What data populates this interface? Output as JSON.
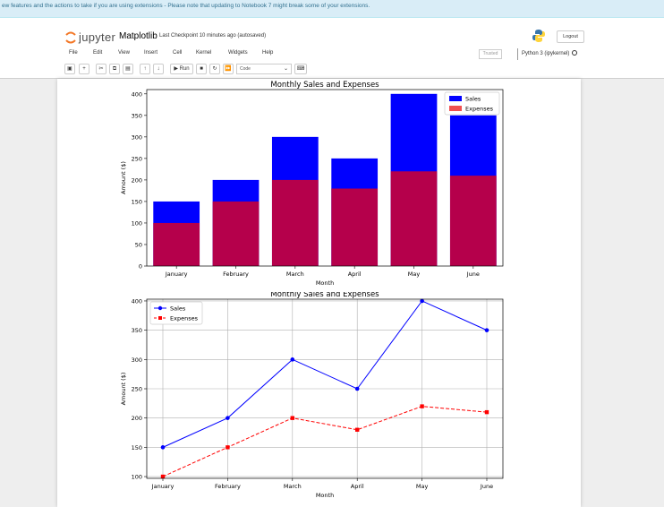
{
  "banner": {
    "text": "ew features and the actions to take if you are using extensions - Please note that updating to Notebook 7 might break some of your extensions."
  },
  "header": {
    "logo_text": "jupyter",
    "notebook_name": "Matplotlib",
    "checkpoint_label": "Last Checkpoint",
    "checkpoint_time": "10 minutes ago",
    "autosave": "(autosaved)",
    "logout_label": "Logout",
    "trusted_label": "Trusted",
    "kernel_label": "Python 3 (ipykernel)"
  },
  "menu": {
    "items": [
      "File",
      "Edit",
      "View",
      "Insert",
      "Cell",
      "Kernel",
      "Widgets",
      "Help"
    ]
  },
  "toolbar": {
    "run_label": "Run",
    "cell_type": "Code"
  },
  "colors": {
    "sales_bar": "#0000ff",
    "expenses_bar": "#b5004b",
    "expenses_legend": "#f05050",
    "line_sales": "#0000ff",
    "line_expenses": "#ff0000"
  },
  "chart_data": [
    {
      "type": "bar",
      "title": "Monthly Sales and Expenses",
      "xlabel": "Month",
      "ylabel": "Amount ($)",
      "categories": [
        "January",
        "February",
        "March",
        "April",
        "May",
        "June"
      ],
      "series": [
        {
          "name": "Sales",
          "values": [
            150,
            200,
            300,
            250,
            400,
            350
          ]
        },
        {
          "name": "Expenses",
          "values": [
            100,
            150,
            200,
            180,
            220,
            210
          ]
        }
      ],
      "ylim": [
        0,
        410
      ],
      "yticks": [
        0,
        50,
        100,
        150,
        200,
        250,
        300,
        350,
        400
      ],
      "legend": "top-right",
      "grid": false
    },
    {
      "type": "line",
      "title": "Monthly Sales and Expenses",
      "xlabel": "Month",
      "ylabel": "Amount ($)",
      "categories": [
        "January",
        "February",
        "March",
        "April",
        "May",
        "June"
      ],
      "series": [
        {
          "name": "Sales",
          "values": [
            150,
            200,
            300,
            250,
            400,
            350
          ]
        },
        {
          "name": "Expenses",
          "values": [
            100,
            150,
            200,
            180,
            220,
            210
          ]
        }
      ],
      "ylim": [
        97,
        403
      ],
      "yticks": [
        100,
        150,
        200,
        250,
        300,
        350,
        400
      ],
      "legend": "top-left",
      "grid": true
    }
  ]
}
